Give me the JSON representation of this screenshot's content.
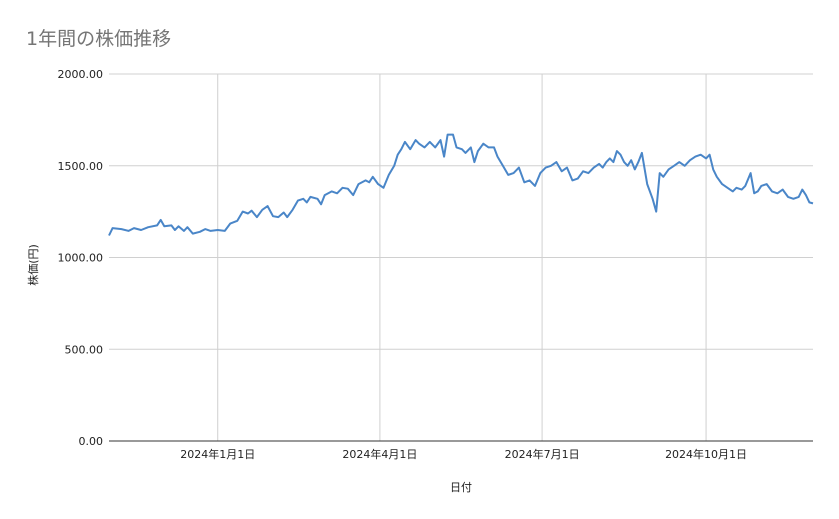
{
  "chart_data": {
    "type": "line",
    "title": "1年間の株価推移",
    "xlabel": "日付",
    "ylabel": "株価(円)",
    "ylim": [
      0,
      2000
    ],
    "y_ticks": [
      {
        "value": 0,
        "label": "0.00"
      },
      {
        "value": 500,
        "label": "500.00"
      },
      {
        "value": 1000,
        "label": "1000.00"
      },
      {
        "value": 1500,
        "label": "1500.00"
      },
      {
        "value": 2000,
        "label": "2000.00"
      }
    ],
    "x_range": [
      "2023-11-01",
      "2024-11-30"
    ],
    "x_ticks": [
      {
        "date": "2024-01-01",
        "label": "2024年1月1日"
      },
      {
        "date": "2024-04-01",
        "label": "2024年4月1日"
      },
      {
        "date": "2024-07-01",
        "label": "2024年7月1日"
      },
      {
        "date": "2024-10-01",
        "label": "2024年10月1日"
      }
    ],
    "grid": true,
    "line_color": "#4a86c8",
    "series": [
      {
        "points": [
          [
            "2023-11-01",
            1120
          ],
          [
            "2023-11-03",
            1160
          ],
          [
            "2023-11-08",
            1155
          ],
          [
            "2023-11-12",
            1145
          ],
          [
            "2023-11-15",
            1160
          ],
          [
            "2023-11-19",
            1150
          ],
          [
            "2023-11-23",
            1165
          ],
          [
            "2023-11-28",
            1175
          ],
          [
            "2023-11-30",
            1205
          ],
          [
            "2023-12-02",
            1170
          ],
          [
            "2023-12-06",
            1175
          ],
          [
            "2023-12-08",
            1150
          ],
          [
            "2023-12-10",
            1170
          ],
          [
            "2023-12-13",
            1145
          ],
          [
            "2023-12-15",
            1165
          ],
          [
            "2023-12-18",
            1130
          ],
          [
            "2023-12-22",
            1140
          ],
          [
            "2023-12-25",
            1155
          ],
          [
            "2023-12-28",
            1145
          ],
          [
            "2024-01-01",
            1150
          ],
          [
            "2024-01-05",
            1145
          ],
          [
            "2024-01-08",
            1185
          ],
          [
            "2024-01-12",
            1200
          ],
          [
            "2024-01-15",
            1250
          ],
          [
            "2024-01-18",
            1240
          ],
          [
            "2024-01-20",
            1255
          ],
          [
            "2024-01-23",
            1220
          ],
          [
            "2024-01-26",
            1260
          ],
          [
            "2024-01-29",
            1280
          ],
          [
            "2024-02-01",
            1225
          ],
          [
            "2024-02-04",
            1220
          ],
          [
            "2024-02-07",
            1245
          ],
          [
            "2024-02-09",
            1220
          ],
          [
            "2024-02-12",
            1260
          ],
          [
            "2024-02-15",
            1310
          ],
          [
            "2024-02-18",
            1320
          ],
          [
            "2024-02-20",
            1300
          ],
          [
            "2024-02-22",
            1330
          ],
          [
            "2024-02-26",
            1320
          ],
          [
            "2024-02-28",
            1290
          ],
          [
            "2024-03-01",
            1340
          ],
          [
            "2024-03-05",
            1360
          ],
          [
            "2024-03-08",
            1350
          ],
          [
            "2024-03-11",
            1380
          ],
          [
            "2024-03-14",
            1375
          ],
          [
            "2024-03-17",
            1340
          ],
          [
            "2024-03-20",
            1400
          ],
          [
            "2024-03-24",
            1420
          ],
          [
            "2024-03-26",
            1410
          ],
          [
            "2024-03-28",
            1440
          ],
          [
            "2024-03-31",
            1400
          ],
          [
            "2024-04-03",
            1380
          ],
          [
            "2024-04-06",
            1450
          ],
          [
            "2024-04-09",
            1500
          ],
          [
            "2024-04-11",
            1560
          ],
          [
            "2024-04-13",
            1590
          ],
          [
            "2024-04-15",
            1630
          ],
          [
            "2024-04-18",
            1590
          ],
          [
            "2024-04-21",
            1640
          ],
          [
            "2024-04-23",
            1620
          ],
          [
            "2024-04-26",
            1600
          ],
          [
            "2024-04-29",
            1630
          ],
          [
            "2024-05-02",
            1600
          ],
          [
            "2024-05-05",
            1640
          ],
          [
            "2024-05-07",
            1550
          ],
          [
            "2024-05-09",
            1670
          ],
          [
            "2024-05-12",
            1670
          ],
          [
            "2024-05-14",
            1600
          ],
          [
            "2024-05-17",
            1590
          ],
          [
            "2024-05-19",
            1570
          ],
          [
            "2024-05-22",
            1600
          ],
          [
            "2024-05-24",
            1520
          ],
          [
            "2024-05-26",
            1580
          ],
          [
            "2024-05-29",
            1620
          ],
          [
            "2024-06-01",
            1600
          ],
          [
            "2024-06-04",
            1600
          ],
          [
            "2024-06-06",
            1550
          ],
          [
            "2024-06-09",
            1500
          ],
          [
            "2024-06-12",
            1450
          ],
          [
            "2024-06-15",
            1460
          ],
          [
            "2024-06-18",
            1490
          ],
          [
            "2024-06-21",
            1410
          ],
          [
            "2024-06-24",
            1420
          ],
          [
            "2024-06-27",
            1390
          ],
          [
            "2024-06-30",
            1460
          ],
          [
            "2024-07-03",
            1490
          ],
          [
            "2024-07-06",
            1500
          ],
          [
            "2024-07-09",
            1520
          ],
          [
            "2024-07-12",
            1470
          ],
          [
            "2024-07-15",
            1490
          ],
          [
            "2024-07-18",
            1420
          ],
          [
            "2024-07-21",
            1430
          ],
          [
            "2024-07-24",
            1470
          ],
          [
            "2024-07-27",
            1460
          ],
          [
            "2024-07-30",
            1490
          ],
          [
            "2024-08-02",
            1510
          ],
          [
            "2024-08-04",
            1490
          ],
          [
            "2024-08-06",
            1520
          ],
          [
            "2024-08-08",
            1540
          ],
          [
            "2024-08-10",
            1520
          ],
          [
            "2024-08-12",
            1580
          ],
          [
            "2024-08-14",
            1560
          ],
          [
            "2024-08-16",
            1520
          ],
          [
            "2024-08-18",
            1500
          ],
          [
            "2024-08-20",
            1530
          ],
          [
            "2024-08-22",
            1480
          ],
          [
            "2024-08-24",
            1520
          ],
          [
            "2024-08-26",
            1570
          ],
          [
            "2024-08-29",
            1400
          ],
          [
            "2024-09-01",
            1320
          ],
          [
            "2024-09-03",
            1250
          ],
          [
            "2024-09-05",
            1460
          ],
          [
            "2024-09-07",
            1440
          ],
          [
            "2024-09-10",
            1480
          ],
          [
            "2024-09-13",
            1500
          ],
          [
            "2024-09-16",
            1520
          ],
          [
            "2024-09-19",
            1500
          ],
          [
            "2024-09-22",
            1530
          ],
          [
            "2024-09-25",
            1550
          ],
          [
            "2024-09-28",
            1560
          ],
          [
            "2024-10-01",
            1540
          ],
          [
            "2024-10-03",
            1560
          ],
          [
            "2024-10-05",
            1480
          ],
          [
            "2024-10-07",
            1440
          ],
          [
            "2024-10-10",
            1400
          ],
          [
            "2024-10-13",
            1380
          ],
          [
            "2024-10-16",
            1360
          ],
          [
            "2024-10-18",
            1380
          ],
          [
            "2024-10-21",
            1370
          ],
          [
            "2024-10-23",
            1390
          ],
          [
            "2024-10-26",
            1460
          ],
          [
            "2024-10-28",
            1350
          ],
          [
            "2024-10-30",
            1360
          ],
          [
            "2024-11-01",
            1390
          ],
          [
            "2024-11-04",
            1400
          ],
          [
            "2024-11-07",
            1360
          ],
          [
            "2024-11-10",
            1350
          ],
          [
            "2024-11-13",
            1370
          ],
          [
            "2024-11-16",
            1330
          ],
          [
            "2024-11-19",
            1320
          ],
          [
            "2024-11-22",
            1330
          ],
          [
            "2024-11-24",
            1370
          ],
          [
            "2024-11-26",
            1340
          ],
          [
            "2024-11-28",
            1300
          ],
          [
            "2024-11-30",
            1295
          ]
        ]
      }
    ]
  }
}
